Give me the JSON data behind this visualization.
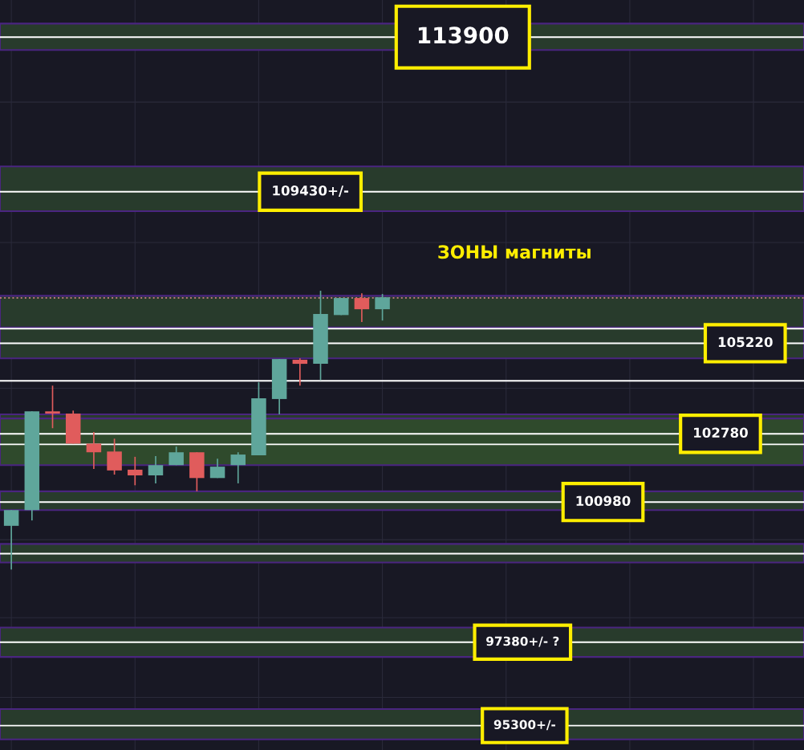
{
  "chart_data": {
    "type": "candlestick",
    "categories": [
      null,
      null,
      null,
      null,
      null,
      null,
      null,
      null,
      null,
      null,
      null,
      null,
      null,
      null,
      null,
      null,
      null,
      null,
      null
    ],
    "ohlc": [
      [
        100360,
        100770,
        99230,
        100770
      ],
      [
        100770,
        103380,
        100500,
        103380
      ],
      [
        103380,
        104070,
        102930,
        103320
      ],
      [
        103320,
        103400,
        102520,
        102520
      ],
      [
        102520,
        102830,
        101850,
        102290
      ],
      [
        102310,
        102650,
        101700,
        101810
      ],
      [
        101830,
        102170,
        101420,
        101680
      ],
      [
        101680,
        102190,
        101470,
        101950
      ],
      [
        101950,
        102440,
        101950,
        102290
      ],
      [
        102290,
        102290,
        101260,
        101610
      ],
      [
        101610,
        102120,
        101610,
        101910
      ],
      [
        101950,
        102290,
        101470,
        102230
      ],
      [
        102210,
        104160,
        102210,
        103730
      ],
      [
        103710,
        104790,
        103300,
        104790
      ],
      [
        104770,
        104810,
        104070,
        104660
      ],
      [
        104660,
        106660,
        104220,
        106020
      ],
      [
        105990,
        106460,
        105990,
        106460
      ],
      [
        106460,
        106590,
        105800,
        106150
      ],
      [
        106150,
        106570,
        105840,
        106480
      ]
    ],
    "ylim": [
      94700,
      115000
    ],
    "log": true,
    "tick_labels": false,
    "grid": true,
    "bands": [
      {
        "axis": "y",
        "from": 113520,
        "to": 114300,
        "color": "#283b2c"
      },
      {
        "axis": "y",
        "from": 108880,
        "to": 110150,
        "color": "#283b2c"
      },
      {
        "axis": "y",
        "from": 104870,
        "to": 106520,
        "color": "#283b2c"
      },
      {
        "axis": "y",
        "from": 104810,
        "to": 105650,
        "color": "#283b2c"
      },
      {
        "axis": "y",
        "from": 102340,
        "to": 103300,
        "color": "#283b2c"
      },
      {
        "axis": "y",
        "from": 101950,
        "to": 103190,
        "color": "#2f4a2c"
      },
      {
        "axis": "y",
        "from": 100770,
        "to": 101260,
        "color": "#283b2c"
      },
      {
        "axis": "y",
        "from": 99410,
        "to": 99890,
        "color": "#283b2c"
      },
      {
        "axis": "y",
        "from": 97010,
        "to": 97750,
        "color": "#283b2c"
      },
      {
        "axis": "y",
        "from": 94960,
        "to": 95710,
        "color": "#283b2c"
      }
    ],
    "ref_lines": [
      {
        "axis": "y",
        "value": 113900,
        "label": "113900",
        "color": "#ffffff"
      },
      {
        "axis": "y",
        "value": 109430,
        "label": "109430+/-",
        "color": "#ffffff"
      },
      {
        "axis": "y",
        "value": 105220,
        "label": "105220",
        "color": "#ffffff"
      },
      {
        "axis": "y",
        "value": 102780,
        "label": "102780",
        "color": "#ffffff"
      },
      {
        "axis": "y",
        "value": 100980,
        "label": "100980",
        "color": "#ffffff"
      },
      {
        "axis": "y",
        "value": 97380,
        "label": "97380+/- ?",
        "color": "#ffffff"
      },
      {
        "axis": "y",
        "value": 95300,
        "label": "95300+/-",
        "color": "#ffffff"
      },
      {
        "axis": "y",
        "value": 105620,
        "color": "#ffffff"
      },
      {
        "axis": "y",
        "value": 104200,
        "color": "#ffffff"
      },
      {
        "axis": "y",
        "value": 102500,
        "color": "#ffffff"
      },
      {
        "axis": "y",
        "value": 99640,
        "color": "#ffffff"
      },
      {
        "axis": "y",
        "value": 106460,
        "color": "#b87878",
        "line_style": "dotted"
      }
    ],
    "annotations": [
      "ЗОНЫ магниты"
    ]
  }
}
